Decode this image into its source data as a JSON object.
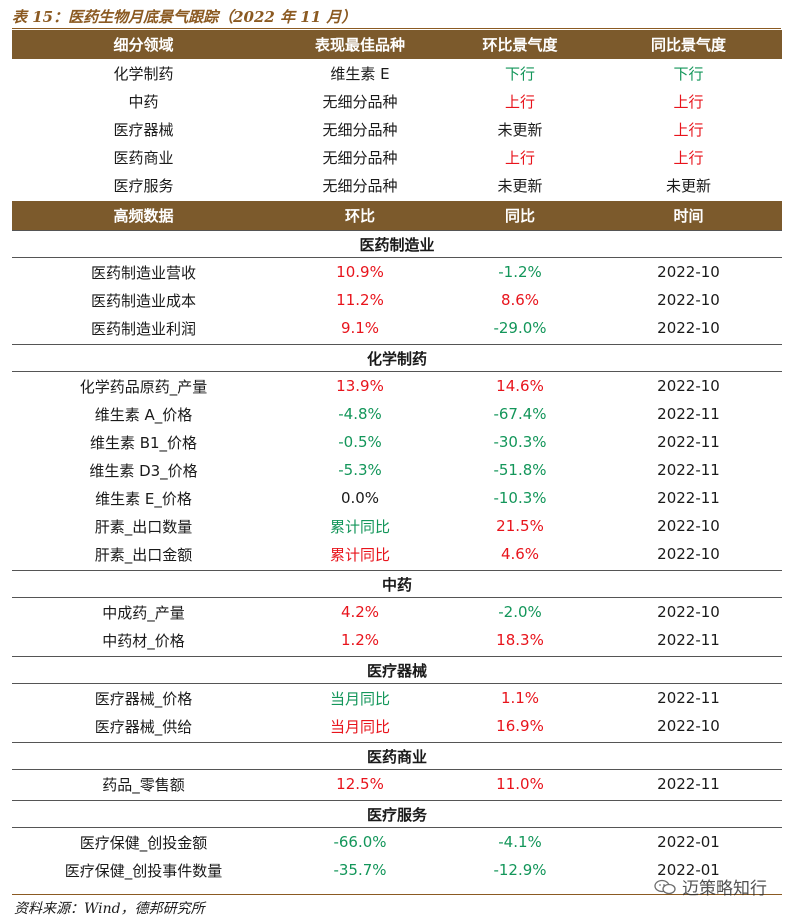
{
  "caption": "表 15：医药生物月底景气跟踪（2022 年 11 月）",
  "colors": {
    "header_bg": "#7c5a2c",
    "up": "#e8141c",
    "down": "#13965a",
    "neutral": "#1a1a1a"
  },
  "sentiment": {
    "headers": [
      "细分领域",
      "表现最佳品种",
      "环比景气度",
      "同比景气度"
    ],
    "rows": [
      {
        "field": "化学制药",
        "best": "维生素 E",
        "mom": "下行",
        "mom_color": "green",
        "yoy": "下行",
        "yoy_color": "green"
      },
      {
        "field": "中药",
        "best": "无细分品种",
        "mom": "上行",
        "mom_color": "red",
        "yoy": "上行",
        "yoy_color": "red"
      },
      {
        "field": "医疗器械",
        "best": "无细分品种",
        "mom": "未更新",
        "mom_color": "black",
        "yoy": "上行",
        "yoy_color": "red"
      },
      {
        "field": "医药商业",
        "best": "无细分品种",
        "mom": "上行",
        "mom_color": "red",
        "yoy": "上行",
        "yoy_color": "red"
      },
      {
        "field": "医疗服务",
        "best": "无细分品种",
        "mom": "未更新",
        "mom_color": "black",
        "yoy": "未更新",
        "yoy_color": "black"
      }
    ]
  },
  "hf": {
    "headers": [
      "高频数据",
      "环比",
      "同比",
      "时间"
    ],
    "sections": [
      {
        "title": "医药制造业",
        "rows": [
          {
            "name": "医药制造业营收",
            "mom": "10.9%",
            "mom_color": "red",
            "yoy": "-1.2%",
            "yoy_color": "green",
            "time": "2022-10"
          },
          {
            "name": "医药制造业成本",
            "mom": "11.2%",
            "mom_color": "red",
            "yoy": "8.6%",
            "yoy_color": "red",
            "time": "2022-10"
          },
          {
            "name": "医药制造业利润",
            "mom": "9.1%",
            "mom_color": "red",
            "yoy": "-29.0%",
            "yoy_color": "green",
            "time": "2022-10"
          }
        ]
      },
      {
        "title": "化学制药",
        "rows": [
          {
            "name": "化学药品原药_产量",
            "mom": "13.9%",
            "mom_color": "red",
            "yoy": "14.6%",
            "yoy_color": "red",
            "time": "2022-10"
          },
          {
            "name": "维生素 A_价格",
            "mom": "-4.8%",
            "mom_color": "green",
            "yoy": "-67.4%",
            "yoy_color": "green",
            "time": "2022-11"
          },
          {
            "name": "维生素 B1_价格",
            "mom": "-0.5%",
            "mom_color": "green",
            "yoy": "-30.3%",
            "yoy_color": "green",
            "time": "2022-11"
          },
          {
            "name": "维生素 D3_价格",
            "mom": "-5.3%",
            "mom_color": "green",
            "yoy": "-51.8%",
            "yoy_color": "green",
            "time": "2022-11"
          },
          {
            "name": "维生素 E_价格",
            "mom": "0.0%",
            "mom_color": "black",
            "yoy": "-10.3%",
            "yoy_color": "green",
            "time": "2022-11"
          },
          {
            "name": "肝素_出口数量",
            "mom": "累计同比",
            "mom_color": "green",
            "yoy": "21.5%",
            "yoy_color": "red",
            "time": "2022-10"
          },
          {
            "name": "肝素_出口金额",
            "mom": "累计同比",
            "mom_color": "red",
            "yoy": "4.6%",
            "yoy_color": "red",
            "time": "2022-10"
          }
        ]
      },
      {
        "title": "中药",
        "rows": [
          {
            "name": "中成药_产量",
            "mom": "4.2%",
            "mom_color": "red",
            "yoy": "-2.0%",
            "yoy_color": "green",
            "time": "2022-10"
          },
          {
            "name": "中药材_价格",
            "mom": "1.2%",
            "mom_color": "red",
            "yoy": "18.3%",
            "yoy_color": "red",
            "time": "2022-11"
          }
        ]
      },
      {
        "title": "医疗器械",
        "rows": [
          {
            "name": "医疗器械_价格",
            "mom": "当月同比",
            "mom_color": "green",
            "yoy": "1.1%",
            "yoy_color": "red",
            "time": "2022-11"
          },
          {
            "name": "医疗器械_供给",
            "mom": "当月同比",
            "mom_color": "red",
            "yoy": "16.9%",
            "yoy_color": "red",
            "time": "2022-10"
          }
        ]
      },
      {
        "title": "医药商业",
        "rows": [
          {
            "name": "药品_零售额",
            "mom": "12.5%",
            "mom_color": "red",
            "yoy": "11.0%",
            "yoy_color": "red",
            "time": "2022-11"
          }
        ]
      },
      {
        "title": "医疗服务",
        "rows": [
          {
            "name": "医疗保健_创投金额",
            "mom": "-66.0%",
            "mom_color": "green",
            "yoy": "-4.1%",
            "yoy_color": "green",
            "time": "2022-01"
          },
          {
            "name": "医疗保健_创投事件数量",
            "mom": "-35.7%",
            "mom_color": "green",
            "yoy": "-12.9%",
            "yoy_color": "green",
            "time": "2022-01"
          }
        ]
      }
    ]
  },
  "source": "资料来源：Wind，德邦研究所",
  "watermark": "迈策略知行",
  "watermark_icon": "wechat-icon"
}
